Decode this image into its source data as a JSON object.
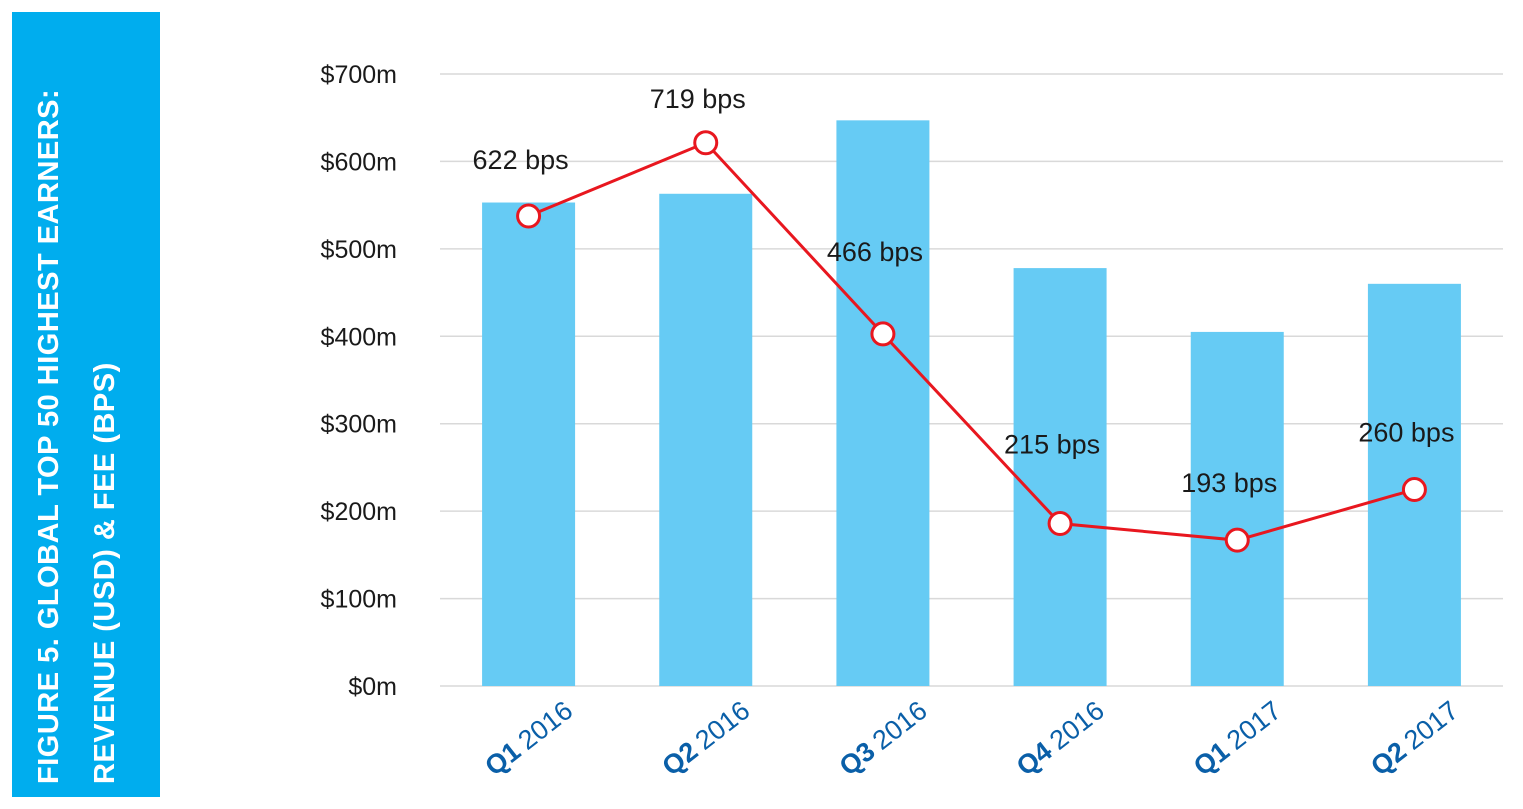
{
  "chart_data": {
    "type": "bar",
    "title": [
      "FIGURE 5. GLOBAL TOP 50 HIGHEST EARNERS:",
      "REVENUE (USD) & FEE (BPS)"
    ],
    "categories": [
      {
        "quarter": "Q1",
        "year": "2016"
      },
      {
        "quarter": "Q2",
        "year": "2016"
      },
      {
        "quarter": "Q3",
        "year": "2016"
      },
      {
        "quarter": "Q4",
        "year": "2016"
      },
      {
        "quarter": "Q1",
        "year": "2017"
      },
      {
        "quarter": "Q2",
        "year": "2017"
      }
    ],
    "y_ticks": [
      "$0m",
      "$100m",
      "$200m",
      "$300m",
      "$400m",
      "$500m",
      "$600m",
      "$700m"
    ],
    "ylim": [
      0,
      700
    ],
    "grid": true,
    "series": [
      {
        "type": "bar",
        "color": "#66cbf4",
        "values": [
          553,
          563,
          647,
          478,
          405,
          460
        ]
      },
      {
        "type": "line",
        "color": "#e8171f",
        "values": [
          622,
          719,
          466,
          215,
          193,
          260
        ],
        "labels": [
          "622 bps",
          "719 bps",
          "466 bps",
          "215 bps",
          "193 bps",
          "260 bps"
        ],
        "scale_max": 810
      }
    ],
    "colors": {
      "title_bg": "#00adee",
      "category_label": "#0a5fa8",
      "grid": "#d9d9d9"
    }
  }
}
